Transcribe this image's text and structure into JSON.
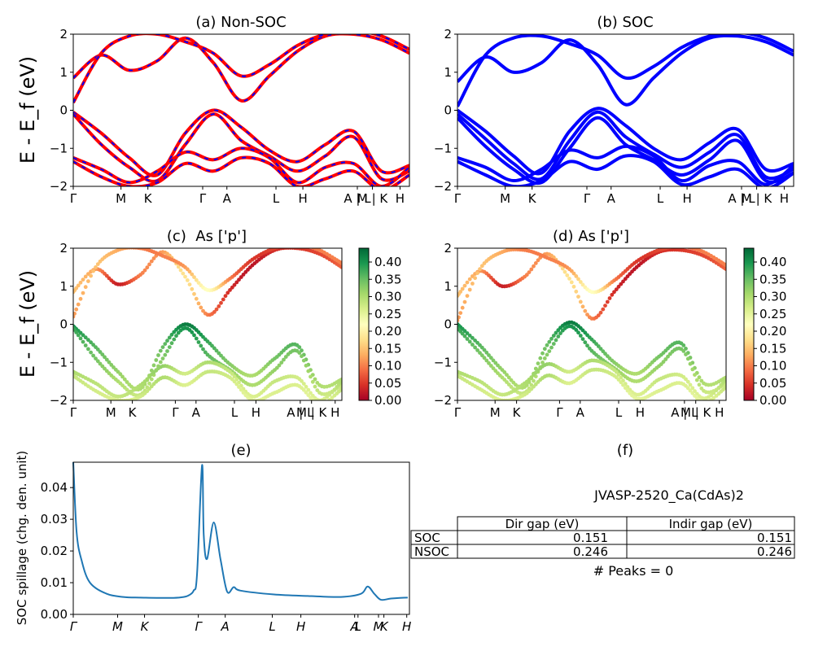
{
  "chart_data": [
    {
      "type": "line",
      "title": "(a) Non-SOC",
      "ylabel": "E - E_f (eV)",
      "ylim": [
        -2,
        2
      ],
      "yticks": [
        -2,
        -1,
        0,
        1,
        2
      ],
      "kpath_labels": [
        "Γ",
        "M",
        "K",
        "Γ",
        "A",
        "L",
        "H",
        "A | L",
        "M | K",
        "H"
      ],
      "line_style": "red with blue dashes",
      "colors": {
        "primary": "#ff0000",
        "dash": "#0000ff"
      },
      "series": [
        {
          "values": [
            0.85,
            1.45,
            1.05,
            1.3,
            1.9,
            1.25,
            0.25,
            0.9,
            1.55,
            1.95,
            2.0,
            1.85,
            1.5
          ]
        },
        {
          "values": [
            0.2,
            1.5,
            1.95,
            2.0,
            1.8,
            1.5,
            0.9,
            1.2,
            1.7,
            2.0,
            2.1,
            1.95,
            1.6
          ]
        },
        {
          "values": [
            -0.05,
            -0.6,
            -1.25,
            -1.7,
            -0.6,
            0.0,
            -0.45,
            -1.05,
            -1.35,
            -0.9,
            -0.55,
            -1.6,
            -1.45
          ]
        },
        {
          "values": [
            -0.1,
            -0.9,
            -1.5,
            -1.85,
            -0.9,
            -0.1,
            -0.8,
            -1.2,
            -1.6,
            -1.2,
            -0.7,
            -1.8,
            -1.6
          ]
        },
        {
          "values": [
            -1.25,
            -1.55,
            -1.9,
            -1.6,
            -1.1,
            -1.3,
            -1.0,
            -1.25,
            -1.9,
            -1.5,
            -1.4,
            -2.0,
            -1.5
          ]
        },
        {
          "values": [
            -1.35,
            -1.75,
            -2.0,
            -1.9,
            -1.4,
            -1.6,
            -1.25,
            -1.4,
            -2.0,
            -1.8,
            -1.6,
            -2.1,
            -1.7
          ]
        }
      ]
    },
    {
      "type": "line",
      "title": "(b) SOC",
      "ylim": [
        -2,
        2
      ],
      "yticks": [
        -2,
        -1,
        0,
        1,
        2
      ],
      "kpath_labels": [
        "Γ",
        "M",
        "K",
        "Γ",
        "A",
        "L",
        "H",
        "A | L",
        "M | K",
        "H"
      ],
      "colors": {
        "primary": "#0000ff"
      },
      "series": [
        {
          "values": [
            0.75,
            1.4,
            1.0,
            1.25,
            1.85,
            1.2,
            0.15,
            0.85,
            1.5,
            1.9,
            1.95,
            1.8,
            1.45
          ]
        },
        {
          "values": [
            0.1,
            1.45,
            1.9,
            1.95,
            1.75,
            1.45,
            0.85,
            1.15,
            1.65,
            1.95,
            2.05,
            1.9,
            1.55
          ]
        },
        {
          "values": [
            0.0,
            -0.55,
            -1.2,
            -1.65,
            -0.55,
            0.05,
            -0.4,
            -1.0,
            -1.3,
            -0.85,
            -0.5,
            -1.55,
            -1.4
          ]
        },
        {
          "values": [
            -0.1,
            -0.75,
            -1.4,
            -1.8,
            -0.8,
            -0.05,
            -0.7,
            -1.15,
            -1.5,
            -1.1,
            -0.65,
            -1.75,
            -1.55
          ]
        },
        {
          "values": [
            -0.2,
            -0.95,
            -1.55,
            -1.9,
            -1.0,
            -0.2,
            -0.9,
            -1.3,
            -1.7,
            -1.3,
            -0.8,
            -1.85,
            -1.65
          ]
        },
        {
          "values": [
            -1.25,
            -1.5,
            -1.85,
            -1.55,
            -1.05,
            -1.25,
            -0.95,
            -1.2,
            -1.85,
            -1.45,
            -1.35,
            -1.95,
            -1.45
          ]
        },
        {
          "values": [
            -1.35,
            -1.7,
            -2.0,
            -1.85,
            -1.35,
            -1.55,
            -1.2,
            -1.35,
            -1.95,
            -1.75,
            -1.55,
            -2.05,
            -1.65
          ]
        }
      ]
    },
    {
      "type": "scatter",
      "title": "(c)  As ['p']",
      "ylabel": "E - E_f (eV)",
      "ylim": [
        -2,
        2
      ],
      "yticks": [
        -2,
        -1,
        0,
        1,
        2
      ],
      "kpath_labels": [
        "Γ",
        "M",
        "K",
        "Γ",
        "A",
        "L",
        "H",
        "A | L",
        "M | K",
        "H"
      ],
      "colorbar": {
        "min": 0.0,
        "max": 0.44,
        "ticks": [
          "0.00",
          "0.05",
          "0.10",
          "0.15",
          "0.20",
          "0.25",
          "0.30",
          "0.35",
          "0.40"
        ],
        "colormap": "RdYlGn"
      },
      "bands": [
        {
          "values": [
            0.85,
            1.45,
            1.05,
            1.3,
            1.9,
            1.25,
            0.25,
            0.9,
            1.55,
            1.95,
            2.0,
            1.85,
            1.5
          ],
          "weight": [
            0.15,
            0.12,
            0.03,
            0.1,
            0.12,
            0.18,
            0.1,
            0.04,
            0.02,
            0.04,
            0.05,
            0.06,
            0.08
          ]
        },
        {
          "values": [
            0.2,
            1.5,
            1.95,
            2.0,
            1.8,
            1.5,
            0.9,
            1.2,
            1.7,
            2.0,
            2.1,
            1.95,
            1.6
          ],
          "weight": [
            0.12,
            0.15,
            0.13,
            0.1,
            0.1,
            0.12,
            0.22,
            0.1,
            0.05,
            0.06,
            0.08,
            0.1,
            0.1
          ]
        },
        {
          "values": [
            -0.05,
            -0.6,
            -1.25,
            -1.7,
            -0.6,
            0.0,
            -0.45,
            -1.05,
            -1.35,
            -0.9,
            -0.55,
            -1.6,
            -1.45
          ],
          "weight": [
            0.4,
            0.36,
            0.32,
            0.3,
            0.35,
            0.42,
            0.38,
            0.33,
            0.3,
            0.34,
            0.36,
            0.3,
            0.3
          ]
        },
        {
          "values": [
            -0.1,
            -0.9,
            -1.5,
            -1.85,
            -0.9,
            -0.1,
            -0.8,
            -1.2,
            -1.6,
            -1.2,
            -0.7,
            -1.8,
            -1.6
          ],
          "weight": [
            0.38,
            0.34,
            0.3,
            0.28,
            0.33,
            0.4,
            0.36,
            0.32,
            0.3,
            0.32,
            0.34,
            0.28,
            0.28
          ]
        },
        {
          "values": [
            -1.25,
            -1.55,
            -1.9,
            -1.6,
            -1.1,
            -1.3,
            -1.0,
            -1.25,
            -1.9,
            -1.5,
            -1.4,
            -2.0,
            -1.5
          ],
          "weight": [
            0.3,
            0.29,
            0.28,
            0.3,
            0.32,
            0.27,
            0.3,
            0.28,
            0.26,
            0.28,
            0.27,
            0.26,
            0.3
          ]
        },
        {
          "values": [
            -1.35,
            -1.75,
            -2.0,
            -1.9,
            -1.4,
            -1.6,
            -1.25,
            -1.4,
            -2.0,
            -1.8,
            -1.6,
            -2.1,
            -1.7
          ],
          "weight": [
            0.28,
            0.27,
            0.26,
            0.27,
            0.3,
            0.26,
            0.28,
            0.27,
            0.25,
            0.26,
            0.26,
            0.25,
            0.28
          ]
        }
      ]
    },
    {
      "type": "scatter",
      "title": "(d) As ['p']",
      "ylim": [
        -2,
        2
      ],
      "yticks": [
        -2,
        -1,
        0,
        1,
        2
      ],
      "kpath_labels": [
        "Γ",
        "M",
        "K",
        "Γ",
        "A",
        "L",
        "H",
        "A | L",
        "M | K",
        "H"
      ],
      "colorbar": {
        "min": 0.0,
        "max": 0.44,
        "ticks": [
          "0.00",
          "0.05",
          "0.10",
          "0.15",
          "0.20",
          "0.25",
          "0.30",
          "0.35",
          "0.40"
        ],
        "colormap": "RdYlGn"
      },
      "bands": [
        {
          "values": [
            0.75,
            1.4,
            1.0,
            1.25,
            1.85,
            1.2,
            0.15,
            0.85,
            1.5,
            1.9,
            1.95,
            1.8,
            1.45
          ],
          "weight": [
            0.15,
            0.12,
            0.03,
            0.1,
            0.12,
            0.18,
            0.1,
            0.04,
            0.02,
            0.04,
            0.05,
            0.06,
            0.08
          ]
        },
        {
          "values": [
            0.1,
            1.45,
            1.9,
            1.95,
            1.75,
            1.45,
            0.85,
            1.15,
            1.65,
            1.95,
            2.05,
            1.9,
            1.55
          ],
          "weight": [
            0.12,
            0.15,
            0.13,
            0.1,
            0.1,
            0.12,
            0.22,
            0.1,
            0.05,
            0.06,
            0.08,
            0.1,
            0.1
          ]
        },
        {
          "values": [
            0.0,
            -0.55,
            -1.2,
            -1.65,
            -0.55,
            0.05,
            -0.4,
            -1.0,
            -1.3,
            -0.85,
            -0.5,
            -1.55,
            -1.4
          ],
          "weight": [
            0.4,
            0.36,
            0.32,
            0.3,
            0.35,
            0.42,
            0.38,
            0.33,
            0.3,
            0.34,
            0.36,
            0.3,
            0.3
          ]
        },
        {
          "values": [
            -0.1,
            -0.75,
            -1.4,
            -1.8,
            -0.8,
            -0.05,
            -0.7,
            -1.15,
            -1.5,
            -1.1,
            -0.65,
            -1.75,
            -1.55
          ],
          "weight": [
            0.38,
            0.34,
            0.3,
            0.28,
            0.33,
            0.4,
            0.36,
            0.32,
            0.3,
            0.32,
            0.34,
            0.28,
            0.28
          ]
        },
        {
          "values": [
            -1.25,
            -1.5,
            -1.85,
            -1.55,
            -1.05,
            -1.25,
            -0.95,
            -1.2,
            -1.85,
            -1.45,
            -1.35,
            -1.95,
            -1.45
          ],
          "weight": [
            0.3,
            0.29,
            0.28,
            0.3,
            0.32,
            0.27,
            0.3,
            0.28,
            0.26,
            0.28,
            0.27,
            0.26,
            0.3
          ]
        },
        {
          "values": [
            -1.35,
            -1.7,
            -2.0,
            -1.85,
            -1.35,
            -1.55,
            -1.2,
            -1.35,
            -1.95,
            -1.75,
            -1.55,
            -2.05,
            -1.65
          ],
          "weight": [
            0.28,
            0.27,
            0.26,
            0.27,
            0.3,
            0.26,
            0.28,
            0.27,
            0.25,
            0.26,
            0.26,
            0.25,
            0.28
          ]
        }
      ]
    },
    {
      "type": "line",
      "title": "(e)",
      "ylabel": "SOC spillage (chg. den. unit)",
      "ylim": [
        0.0,
        0.048
      ],
      "yticks": [
        "0.00",
        "0.01",
        "0.02",
        "0.03",
        "0.04"
      ],
      "kpath_labels": [
        "Γ",
        "M",
        "K",
        "Γ",
        "A",
        "L",
        "H",
        "A",
        "L",
        "M",
        "K",
        "H"
      ],
      "colors": {
        "primary": "#1f77b4"
      },
      "series": [
        {
          "x": [
            0,
            0.01,
            0.025,
            0.05,
            0.1,
            0.15,
            0.2,
            0.25,
            0.3,
            0.33,
            0.345,
            0.36,
            0.37,
            0.385,
            0.39,
            0.4,
            0.42,
            0.44,
            0.46,
            0.48,
            0.5,
            0.6,
            0.7,
            0.8,
            0.86,
            0.88,
            0.9,
            0.92,
            0.95,
            1.0
          ],
          "values": [
            0.048,
            0.026,
            0.017,
            0.01,
            0.0065,
            0.0055,
            0.0053,
            0.0052,
            0.0052,
            0.0055,
            0.006,
            0.0075,
            0.0125,
            0.047,
            0.025,
            0.0175,
            0.029,
            0.0175,
            0.0072,
            0.0086,
            0.0075,
            0.0063,
            0.0058,
            0.0055,
            0.0065,
            0.0088,
            0.0065,
            0.0046,
            0.005,
            0.0053
          ]
        }
      ]
    },
    {
      "type": "table",
      "title": "(f)",
      "caption": "JVASP-2520_Ca(CdAs)2",
      "columns": [
        "Dir gap (eV)",
        "Indir gap (eV)"
      ],
      "rows": [
        {
          "label": "SOC",
          "cells": [
            "0.151",
            "0.151"
          ]
        },
        {
          "label": "NSOC",
          "cells": [
            "0.246",
            "0.246"
          ]
        }
      ],
      "footer": "# Peaks = 0"
    }
  ]
}
